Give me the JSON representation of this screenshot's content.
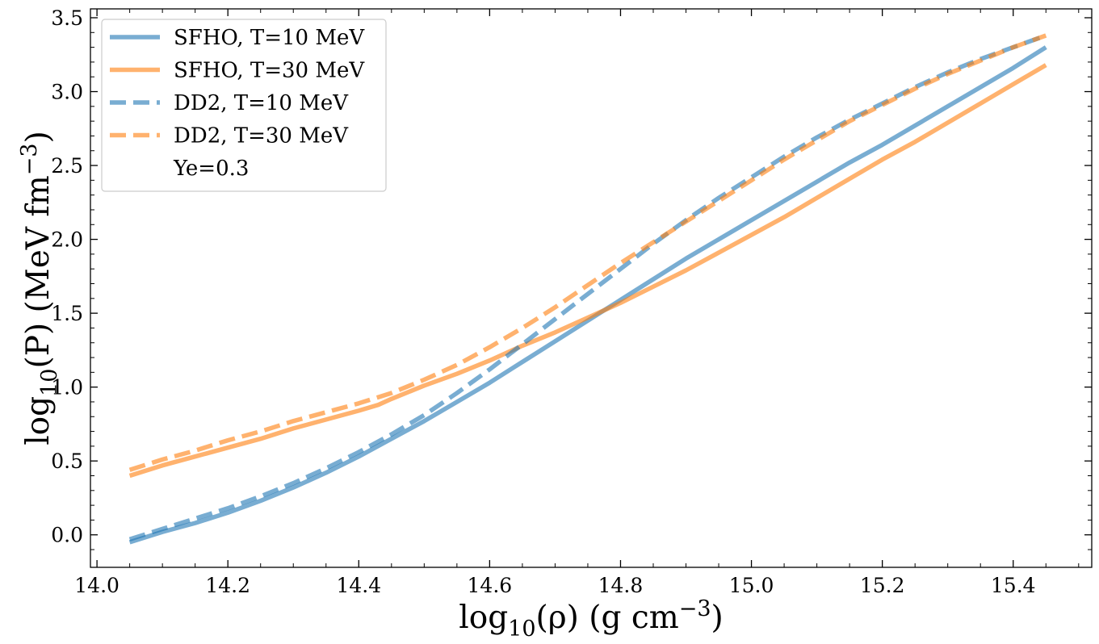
{
  "chart_data": {
    "type": "line",
    "title": "",
    "xlabel": "log10(ρ) (g cm−3)",
    "xlabel_parts": {
      "pre": "log",
      "sub": "10",
      "mid": "(ρ) (g cm",
      "sup": "−3",
      "post": ")"
    },
    "ylabel": "log10(P) (MeV fm−3)",
    "ylabel_parts": {
      "pre": "log",
      "sub": "10",
      "mid": "(P) (MeV fm",
      "sup": "−3",
      "post": ")"
    },
    "xlim": [
      13.99,
      15.52
    ],
    "ylim": [
      -0.22,
      3.56
    ],
    "xticks": [
      14.0,
      14.2,
      14.4,
      14.6,
      14.8,
      15.0,
      15.2,
      15.4
    ],
    "xtick_labels": [
      "14.0",
      "14.2",
      "14.4",
      "14.6",
      "14.8",
      "15.0",
      "15.2",
      "15.4"
    ],
    "yticks": [
      0.0,
      0.5,
      1.0,
      1.5,
      2.0,
      2.5,
      3.0,
      3.5
    ],
    "ytick_labels": [
      "0.0",
      "0.5",
      "1.0",
      "1.5",
      "2.0",
      "2.5",
      "3.0",
      "3.5"
    ],
    "grid": false,
    "legend_position": "top-left",
    "legend_note": "Ye=0.3",
    "series": [
      {
        "name": "SFHO, T=10 MeV",
        "color": "#1f77b4",
        "style": "solid",
        "x": [
          14.05,
          14.1,
          14.15,
          14.2,
          14.25,
          14.3,
          14.35,
          14.4,
          14.45,
          14.5,
          14.55,
          14.6,
          14.65,
          14.7,
          14.75,
          14.8,
          14.85,
          14.9,
          14.95,
          15.0,
          15.05,
          15.1,
          15.15,
          15.2,
          15.25,
          15.3,
          15.35,
          15.4,
          15.45
        ],
        "y": [
          -0.05,
          0.02,
          0.08,
          0.15,
          0.23,
          0.32,
          0.42,
          0.53,
          0.65,
          0.77,
          0.9,
          1.03,
          1.17,
          1.31,
          1.45,
          1.59,
          1.73,
          1.87,
          2.0,
          2.13,
          2.26,
          2.39,
          2.52,
          2.64,
          2.77,
          2.9,
          3.03,
          3.16,
          3.3
        ]
      },
      {
        "name": "SFHO, T=30 MeV",
        "color": "#ff7f0e",
        "style": "solid",
        "x": [
          14.05,
          14.1,
          14.15,
          14.2,
          14.25,
          14.3,
          14.35,
          14.4,
          14.43,
          14.45,
          14.5,
          14.55,
          14.6,
          14.65,
          14.7,
          14.75,
          14.8,
          14.85,
          14.9,
          14.95,
          15.0,
          15.05,
          15.1,
          15.15,
          15.2,
          15.25,
          15.3,
          15.35,
          15.4,
          15.45
        ],
        "y": [
          0.4,
          0.47,
          0.53,
          0.59,
          0.65,
          0.72,
          0.78,
          0.84,
          0.88,
          0.92,
          1.01,
          1.09,
          1.18,
          1.28,
          1.37,
          1.47,
          1.57,
          1.68,
          1.79,
          1.91,
          2.03,
          2.15,
          2.28,
          2.41,
          2.54,
          2.66,
          2.79,
          2.92,
          3.05,
          3.18
        ]
      },
      {
        "name": "DD2, T=10 MeV",
        "color": "#1f77b4",
        "style": "dashed",
        "x": [
          14.05,
          14.1,
          14.15,
          14.2,
          14.25,
          14.3,
          14.35,
          14.4,
          14.45,
          14.5,
          14.55,
          14.6,
          14.65,
          14.7,
          14.75,
          14.8,
          14.85,
          14.9,
          14.95,
          15.0,
          15.05,
          15.1,
          15.15,
          15.2,
          15.25,
          15.3,
          15.35,
          15.4,
          15.45
        ],
        "y": [
          -0.03,
          0.04,
          0.11,
          0.18,
          0.26,
          0.35,
          0.45,
          0.56,
          0.68,
          0.81,
          0.96,
          1.12,
          1.29,
          1.46,
          1.63,
          1.8,
          1.97,
          2.13,
          2.28,
          2.42,
          2.56,
          2.69,
          2.81,
          2.92,
          3.03,
          3.13,
          3.22,
          3.3,
          3.38
        ]
      },
      {
        "name": "DD2, T=30 MeV",
        "color": "#ff7f0e",
        "style": "dashed",
        "x": [
          14.05,
          14.1,
          14.15,
          14.2,
          14.25,
          14.3,
          14.35,
          14.4,
          14.45,
          14.5,
          14.55,
          14.6,
          14.65,
          14.7,
          14.75,
          14.8,
          14.85,
          14.9,
          14.95,
          15.0,
          15.05,
          15.1,
          15.15,
          15.2,
          15.25,
          15.3,
          15.35,
          15.4,
          15.45
        ],
        "y": [
          0.44,
          0.51,
          0.57,
          0.64,
          0.7,
          0.77,
          0.83,
          0.89,
          0.96,
          1.05,
          1.15,
          1.27,
          1.4,
          1.54,
          1.69,
          1.84,
          1.98,
          2.12,
          2.26,
          2.4,
          2.54,
          2.67,
          2.8,
          2.91,
          3.02,
          3.12,
          3.21,
          3.3,
          3.38
        ]
      }
    ]
  }
}
